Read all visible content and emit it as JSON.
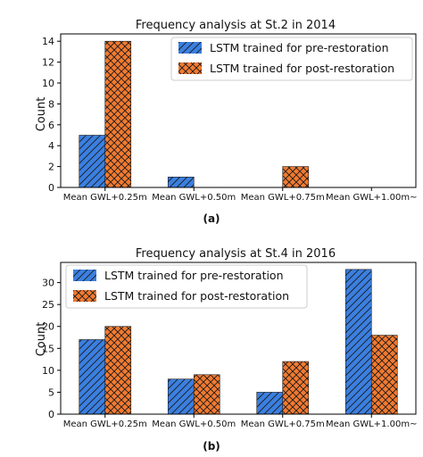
{
  "captions": [
    "(a)",
    "(b)"
  ],
  "chart_data": [
    {
      "type": "bar",
      "title": "Frequency analysis at St.2 in 2014",
      "xlabel": "",
      "ylabel": "Count",
      "categories": [
        "Mean GWL+0.25m",
        "Mean GWL+0.50m",
        "Mean GWL+0.75m",
        "Mean GWL+1.00m~"
      ],
      "series": [
        {
          "name": "LSTM trained for pre-restoration",
          "values": [
            5,
            1,
            0,
            0
          ],
          "color": "#3b7fe0",
          "hatch": "diagonal"
        },
        {
          "name": "LSTM trained for post-restoration",
          "values": [
            14,
            0,
            2,
            0
          ],
          "color": "#f27a30",
          "hatch": "cross"
        }
      ],
      "ylim": [
        0,
        14.7
      ],
      "yticks": [
        0,
        2,
        4,
        6,
        8,
        10,
        12,
        14
      ],
      "grid": false,
      "legend": "top-right"
    },
    {
      "type": "bar",
      "title": "Frequency analysis at St.4 in 2016",
      "xlabel": "",
      "ylabel": "Count",
      "categories": [
        "Mean GWL+0.25m",
        "Mean GWL+0.50m",
        "Mean GWL+0.75m",
        "Mean GWL+1.00m~"
      ],
      "series": [
        {
          "name": "LSTM trained for pre-restoration",
          "values": [
            17,
            8,
            5,
            33
          ],
          "color": "#3b7fe0",
          "hatch": "diagonal"
        },
        {
          "name": "LSTM trained for post-restoration",
          "values": [
            20,
            9,
            12,
            18
          ],
          "color": "#f27a30",
          "hatch": "cross"
        }
      ],
      "ylim": [
        0,
        34.6
      ],
      "yticks": [
        0,
        5,
        10,
        15,
        20,
        25,
        30
      ],
      "grid": false,
      "legend": "top-left"
    }
  ]
}
